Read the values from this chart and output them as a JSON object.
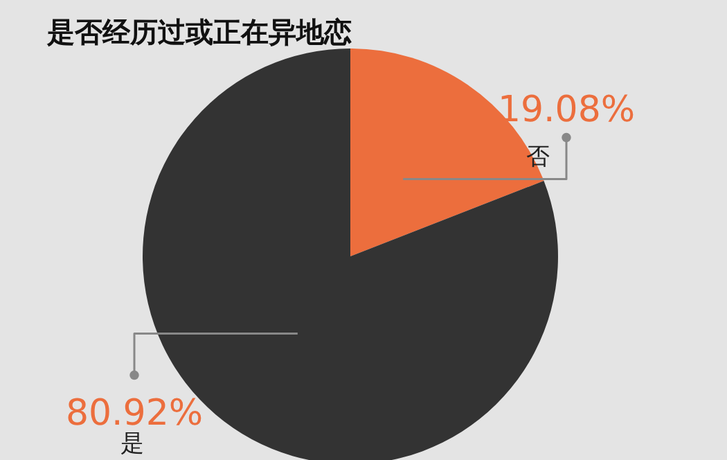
{
  "chart_data": {
    "type": "pie",
    "title": "是否经历过或正在异地恋",
    "categories": [
      "否",
      "是"
    ],
    "values": [
      19.08,
      80.92
    ],
    "colors": [
      "#ec6e3d",
      "#333333"
    ],
    "value_labels": [
      "19.08%",
      "80.92%"
    ]
  }
}
